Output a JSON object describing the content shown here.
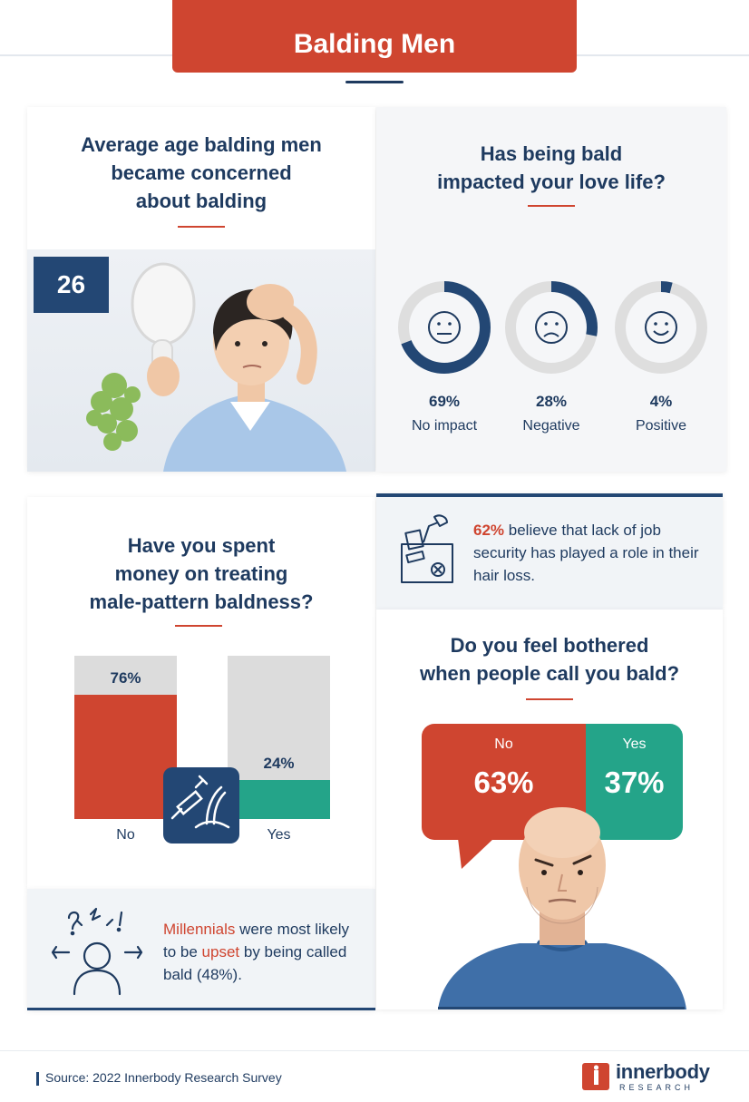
{
  "header": {
    "title": "Balding Men"
  },
  "age_card": {
    "title_lines": [
      "Average age balding men",
      "became concerned",
      "about balding"
    ],
    "age": "26"
  },
  "love_card": {
    "title_lines": [
      "Has being bald",
      "impacted your love life?"
    ],
    "items": [
      {
        "value": "69%",
        "label": "No impact",
        "face": "neutral-face-icon"
      },
      {
        "value": "28%",
        "label": "Negative",
        "face": "sad-face-icon"
      },
      {
        "value": "4%",
        "label": "Positive",
        "face": "happy-face-icon"
      }
    ]
  },
  "spent_card": {
    "title_lines": [
      "Have you spent",
      "money on treating",
      "male-pattern baldness?"
    ]
  },
  "millennials": {
    "hl1": "Millennials",
    "t1": " were most likely to be ",
    "hl2": "upset",
    "t2": " by being called bald (48%)."
  },
  "job": {
    "pct": "62%",
    "text": " believe that lack of job security has played a role in their hair loss."
  },
  "bother_card": {
    "title_lines": [
      "Do you feel bothered",
      "when people call you bald?"
    ]
  },
  "footer": {
    "source": "Source: 2022 Innerbody Research Survey",
    "logo_name": "innerbody",
    "logo_sub": "RESEARCH"
  },
  "colors": {
    "red": "#cf4530",
    "navy": "#234774",
    "teal": "#24a489",
    "grey": "#dcdcdc"
  },
  "chart_data": [
    {
      "type": "pie",
      "title": "Has being bald impacted your love life?",
      "categories": [
        "No impact",
        "Negative",
        "Positive"
      ],
      "values": [
        69,
        28,
        4
      ],
      "unit": "%"
    },
    {
      "type": "bar",
      "title": "Have you spent money on treating male-pattern baldness?",
      "categories": [
        "No",
        "Yes"
      ],
      "values": [
        76,
        24
      ],
      "value_labels": [
        "76%",
        "24%"
      ],
      "ylim": [
        0,
        100
      ]
    },
    {
      "type": "bar",
      "title": "Do you feel bothered when people call you bald?",
      "categories": [
        "No",
        "Yes"
      ],
      "values": [
        63,
        37
      ],
      "value_labels": [
        "63%",
        "37%"
      ]
    }
  ]
}
